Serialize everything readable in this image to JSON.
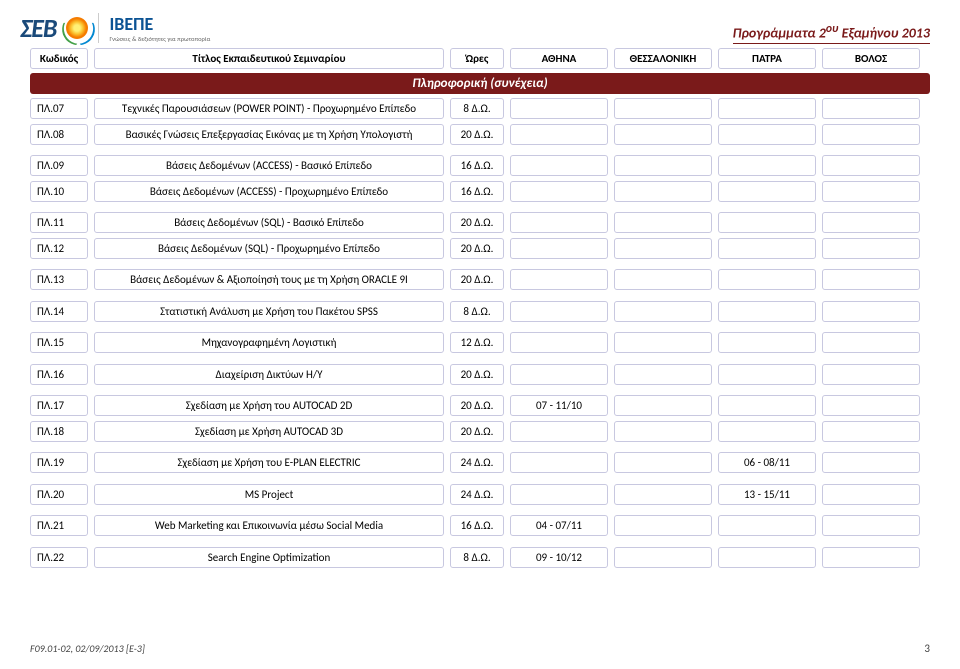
{
  "header": {
    "logo_sev": "ΣΕΒ",
    "logo_ivepe": "ΙΒΕΠΕ",
    "logo_sub": "Γνώσεις & δεξιότητες για πρωτοπορία",
    "title_html": "Προγράμματα 2<sup>ου</sup> Εξαμήνου 2013"
  },
  "columns": {
    "code": "Κωδικός",
    "title": "Τίτλος Εκπαιδευτικού Σεμιναρίου",
    "hours": "Ώρες",
    "athens": "ΑΘΗΝΑ",
    "thess": "ΘΕΣΣΑΛΟΝΙΚΗ",
    "patra": "ΠΑΤΡΑ",
    "volos": "ΒΟΛΟΣ"
  },
  "section": "Πληροφορική (συνέχεια)",
  "rows": [
    {
      "code": "ΠΛ.07",
      "title": "Τεχνικές Παρουσιάσεων (POWER POINT) - Προχωρημένο Επίπεδο",
      "hours": "8 Δ.Ω.",
      "athens": "",
      "thess": "",
      "patra": "",
      "volos": ""
    },
    {
      "code": "ΠΛ.08",
      "title": "Βασικές Γνώσεις Επεξεργασίας Εικόνας με τη Χρήση Υπολογιστή",
      "hours": "20 Δ.Ω.",
      "athens": "",
      "thess": "",
      "patra": "",
      "volos": ""
    },
    {
      "code": "ΠΛ.09",
      "title": "Βάσεις Δεδομένων (ACCESS) - Βασικό Επίπεδο",
      "hours": "16 Δ.Ω.",
      "athens": "",
      "thess": "",
      "patra": "",
      "volos": "",
      "gap": true
    },
    {
      "code": "ΠΛ.10",
      "title": "Βάσεις Δεδομένων (ACCESS) - Προχωρημένο Επίπεδο",
      "hours": "16 Δ.Ω.",
      "athens": "",
      "thess": "",
      "patra": "",
      "volos": ""
    },
    {
      "code": "ΠΛ.11",
      "title": "Βάσεις Δεδομένων (SQL) - Βασικό Επίπεδο",
      "hours": "20 Δ.Ω.",
      "athens": "",
      "thess": "",
      "patra": "",
      "volos": "",
      "gap": true
    },
    {
      "code": "ΠΛ.12",
      "title": "Βάσεις Δεδομένων (SQL) - Προχωρημένο Επίπεδο",
      "hours": "20 Δ.Ω.",
      "athens": "",
      "thess": "",
      "patra": "",
      "volos": ""
    },
    {
      "code": "ΠΛ.13",
      "title": "Βάσεις Δεδομένων & Αξιοποίησή τους με τη Χρήση ORACLE 9I",
      "hours": "20 Δ.Ω.",
      "athens": "",
      "thess": "",
      "patra": "",
      "volos": "",
      "gap": true
    },
    {
      "code": "ΠΛ.14",
      "title": "Στατιστική Ανάλυση με Χρήση του Πακέτου SPSS",
      "hours": "8 Δ.Ω.",
      "athens": "",
      "thess": "",
      "patra": "",
      "volos": "",
      "gap": true
    },
    {
      "code": "ΠΛ.15",
      "title": "Μηχανογραφημένη Λογιστική",
      "hours": "12 Δ.Ω.",
      "athens": "",
      "thess": "",
      "patra": "",
      "volos": "",
      "gap": true
    },
    {
      "code": "ΠΛ.16",
      "title": "Διαχείριση Δικτύων Η/Υ",
      "hours": "20 Δ.Ω.",
      "athens": "",
      "thess": "",
      "patra": "",
      "volos": "",
      "gap": true
    },
    {
      "code": "ΠΛ.17",
      "title": "Σχεδίαση με Χρήση του AUTOCAD 2D",
      "hours": "20 Δ.Ω.",
      "athens": "07 - 11/10",
      "thess": "",
      "patra": "",
      "volos": "",
      "gap": true
    },
    {
      "code": "ΠΛ.18",
      "title": "Σχεδίαση με Χρήση AUTOCAD 3D",
      "hours": "20 Δ.Ω.",
      "athens": "",
      "thess": "",
      "patra": "",
      "volos": ""
    },
    {
      "code": "ΠΛ.19",
      "title": "Σχεδίαση με Χρήση του E-PLAN ELECTRIC",
      "hours": "24 Δ.Ω.",
      "athens": "",
      "thess": "",
      "patra": "06 - 08/11",
      "volos": "",
      "gap": true
    },
    {
      "code": "ΠΛ.20",
      "title": "MS Project",
      "hours": "24 Δ.Ω.",
      "athens": "",
      "thess": "",
      "patra": "13 - 15/11",
      "volos": "",
      "gap": true
    },
    {
      "code": "ΠΛ.21",
      "title": "Web Marketing και Επικοινωνία μέσω Social Media",
      "hours": "16 Δ.Ω.",
      "athens": "04 - 07/11",
      "thess": "",
      "patra": "",
      "volos": "",
      "gap": true
    },
    {
      "code": "ΠΛ.22",
      "title": "Search Engine Optimization",
      "hours": "8 Δ.Ω.",
      "athens": "09 - 10/12",
      "thess": "",
      "patra": "",
      "volos": "",
      "gap": true
    }
  ],
  "footer": {
    "left": "F09.01-02, 02/09/2013 [E-3]",
    "page": "3"
  },
  "style": {
    "section_bg": "#7a1a1a",
    "section_fg": "#ffffff",
    "cell_border": "#c8c8e0",
    "header_title_color": "#7a1a1a",
    "logo_sev_color": "#1a4a7a",
    "logo_ivepe_color": "#0b5394"
  }
}
